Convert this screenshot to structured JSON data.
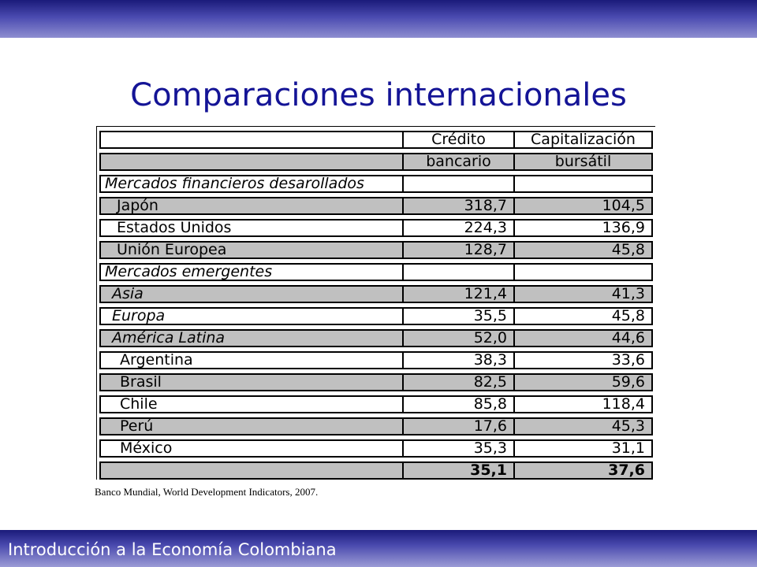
{
  "slide": {
    "title": "Comparaciones internacionales",
    "footer": "Introducción a la Economía Colombiana",
    "source": "Banco Mundial, World Development Indicators, 2007."
  },
  "table": {
    "header_row1": [
      "",
      "Crédito",
      "Capitalización"
    ],
    "header_row2": [
      "",
      "bancario",
      "bursátil"
    ],
    "rows": [
      {
        "label": "Mercados financieros desarollados",
        "credit": "",
        "cap": ""
      },
      {
        "label": "Japón",
        "credit": "318,7",
        "cap": "104,5"
      },
      {
        "label": "Estados Unidos",
        "credit": "224,3",
        "cap": "136,9"
      },
      {
        "label": "Unión Europea",
        "credit": "128,7",
        "cap": "45,8"
      },
      {
        "label": "Mercados emergentes",
        "credit": "",
        "cap": ""
      },
      {
        "label": "Asia",
        "credit": "121,4",
        "cap": "41,3"
      },
      {
        "label": "Europa",
        "credit": "35,5",
        "cap": "45,8"
      },
      {
        "label": "América Latina",
        "credit": "52,0",
        "cap": "44,6"
      },
      {
        "label": "Argentina",
        "credit": "38,3",
        "cap": "33,6"
      },
      {
        "label": "Brasil",
        "credit": "82,5",
        "cap": "59,6"
      },
      {
        "label": "Chile",
        "credit": "85,8",
        "cap": "118,4"
      },
      {
        "label": "Perú",
        "credit": "17,6",
        "cap": "45,3"
      },
      {
        "label": "México",
        "credit": "35,3",
        "cap": "31,1"
      },
      {
        "label": "",
        "credit": "35,1",
        "cap": "37,6"
      }
    ]
  },
  "colors": {
    "title": "#141496",
    "band_dark": "#1b1b7a",
    "band_light": "#9c9cd6",
    "cell_gray": "#c0c0c0"
  }
}
